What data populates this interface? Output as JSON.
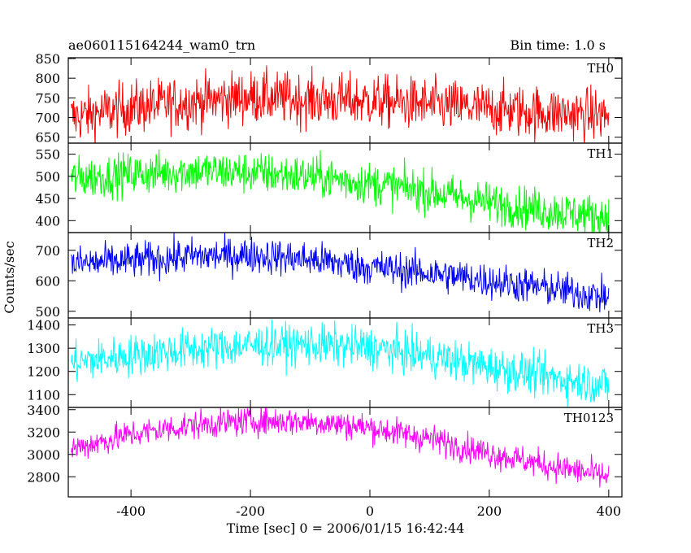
{
  "header": {
    "title": "ae060115164244_wam0_trn",
    "bin_time": "Bin time: 1.0 s"
  },
  "chart_data": {
    "type": "line",
    "title": "ae060115164244_wam0_trn",
    "subtitle": "Bin time: 1.0 s",
    "xlabel": "Time [sec] 0 = 2006/01/15 16:42:44",
    "ylabel": "Counts/sec",
    "xlim": [
      -505,
      422
    ],
    "x_ticks": [
      -400,
      -200,
      0,
      200,
      400
    ],
    "x_start": -500,
    "x_end": 400,
    "grid": false,
    "legend": "none",
    "panels": [
      {
        "name": "TH0",
        "color": "#ff0000",
        "ylim": [
          635,
          852
        ],
        "y_ticks": [
          650,
          700,
          750,
          800,
          850
        ],
        "trend": [
          [
            -500,
            700
          ],
          [
            -400,
            725
          ],
          [
            -300,
            740
          ],
          [
            -200,
            752
          ],
          [
            -100,
            745
          ],
          [
            0,
            742
          ],
          [
            100,
            732
          ],
          [
            200,
            722
          ],
          [
            300,
            712
          ],
          [
            400,
            705
          ]
        ],
        "noise": 34
      },
      {
        "name": "TH1",
        "color": "#00ff00",
        "ylim": [
          373,
          575
        ],
        "y_ticks": [
          400,
          450,
          500,
          550
        ],
        "trend": [
          [
            -500,
            495
          ],
          [
            -400,
            505
          ],
          [
            -300,
            512
          ],
          [
            -200,
            508
          ],
          [
            -100,
            500
          ],
          [
            0,
            485
          ],
          [
            100,
            465
          ],
          [
            200,
            440
          ],
          [
            300,
            423
          ],
          [
            400,
            408
          ]
        ],
        "noise": 24
      },
      {
        "name": "TH2",
        "color": "#0000ff",
        "ylim": [
          478,
          758
        ],
        "y_ticks": [
          500,
          600,
          700
        ],
        "trend": [
          [
            -500,
            655
          ],
          [
            -400,
            665
          ],
          [
            -300,
            680
          ],
          [
            -200,
            685
          ],
          [
            -100,
            670
          ],
          [
            0,
            645
          ],
          [
            100,
            625
          ],
          [
            200,
            600
          ],
          [
            300,
            575
          ],
          [
            400,
            545
          ]
        ],
        "noise": 30
      },
      {
        "name": "TH3",
        "color": "#00ffff",
        "ylim": [
          1045,
          1430
        ],
        "y_ticks": [
          1100,
          1200,
          1300,
          1400
        ],
        "trend": [
          [
            -500,
            1235
          ],
          [
            -400,
            1270
          ],
          [
            -300,
            1295
          ],
          [
            -200,
            1312
          ],
          [
            -100,
            1315
          ],
          [
            0,
            1302
          ],
          [
            100,
            1265
          ],
          [
            200,
            1220
          ],
          [
            300,
            1175
          ],
          [
            400,
            1140
          ]
        ],
        "noise": 45
      },
      {
        "name": "TH0123",
        "color": "#ff00ff",
        "ylim": [
          2620,
          3420
        ],
        "y_ticks": [
          2800,
          3000,
          3200,
          3400
        ],
        "trend": [
          [
            -500,
            3050
          ],
          [
            -400,
            3180
          ],
          [
            -300,
            3260
          ],
          [
            -200,
            3300
          ],
          [
            -100,
            3295
          ],
          [
            0,
            3240
          ],
          [
            100,
            3140
          ],
          [
            200,
            3010
          ],
          [
            300,
            2900
          ],
          [
            400,
            2800
          ]
        ],
        "noise": 65
      }
    ]
  }
}
